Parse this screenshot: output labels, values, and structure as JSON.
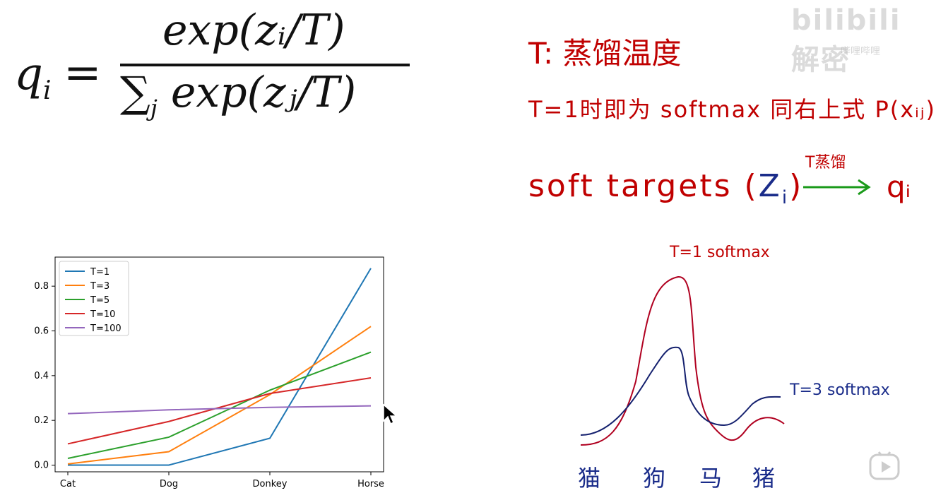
{
  "formula": {
    "lhs_var": "q",
    "lhs_sub": "i",
    "equals": "=",
    "numerator": "exp(zᵢ/T)",
    "denominator_sum": "∑",
    "denominator_sub": "j",
    "denominator": "exp(zⱼ/T)"
  },
  "notes": {
    "line1": "T: 蒸馏温度",
    "line2": "T=1时即为 softmax   同右上式 P(xᵢⱼ)",
    "line3_soft": "soft targets (",
    "line3_z": "Z",
    "line3_zsub": "i",
    "line3_close": ")",
    "arrow_label": "T蒸馏",
    "qi": "qᵢ"
  },
  "curves": {
    "red_label": "T=1 softmax",
    "blue_label": "T=3 softmax",
    "animals": [
      "猫",
      "狗",
      "马",
      "猪"
    ],
    "red_color": "#b00020",
    "blue_color": "#14206e"
  },
  "chart_data": {
    "type": "line",
    "categories": [
      "Cat",
      "Dog",
      "Donkey",
      "Horse"
    ],
    "ylim": [
      -0.03,
      0.93
    ],
    "yticks": [
      "0.0",
      "0.2",
      "0.4",
      "0.6",
      "0.8"
    ],
    "legend_position": "top-left",
    "series": [
      {
        "name": "T=1",
        "color": "#1f77b4",
        "values": [
          0.0,
          0.0,
          0.12,
          0.88
        ]
      },
      {
        "name": "T=3",
        "color": "#ff7f0e",
        "values": [
          0.005,
          0.06,
          0.315,
          0.62
        ]
      },
      {
        "name": "T=5",
        "color": "#2ca02c",
        "values": [
          0.03,
          0.125,
          0.335,
          0.505
        ]
      },
      {
        "name": "T=10",
        "color": "#d62728",
        "values": [
          0.095,
          0.195,
          0.32,
          0.39
        ]
      },
      {
        "name": "T=100",
        "color": "#9467bd",
        "values": [
          0.23,
          0.247,
          0.258,
          0.265
        ]
      }
    ]
  },
  "watermark": {
    "text": "bilibili 解密",
    "sub": "哔哩哔哩"
  }
}
